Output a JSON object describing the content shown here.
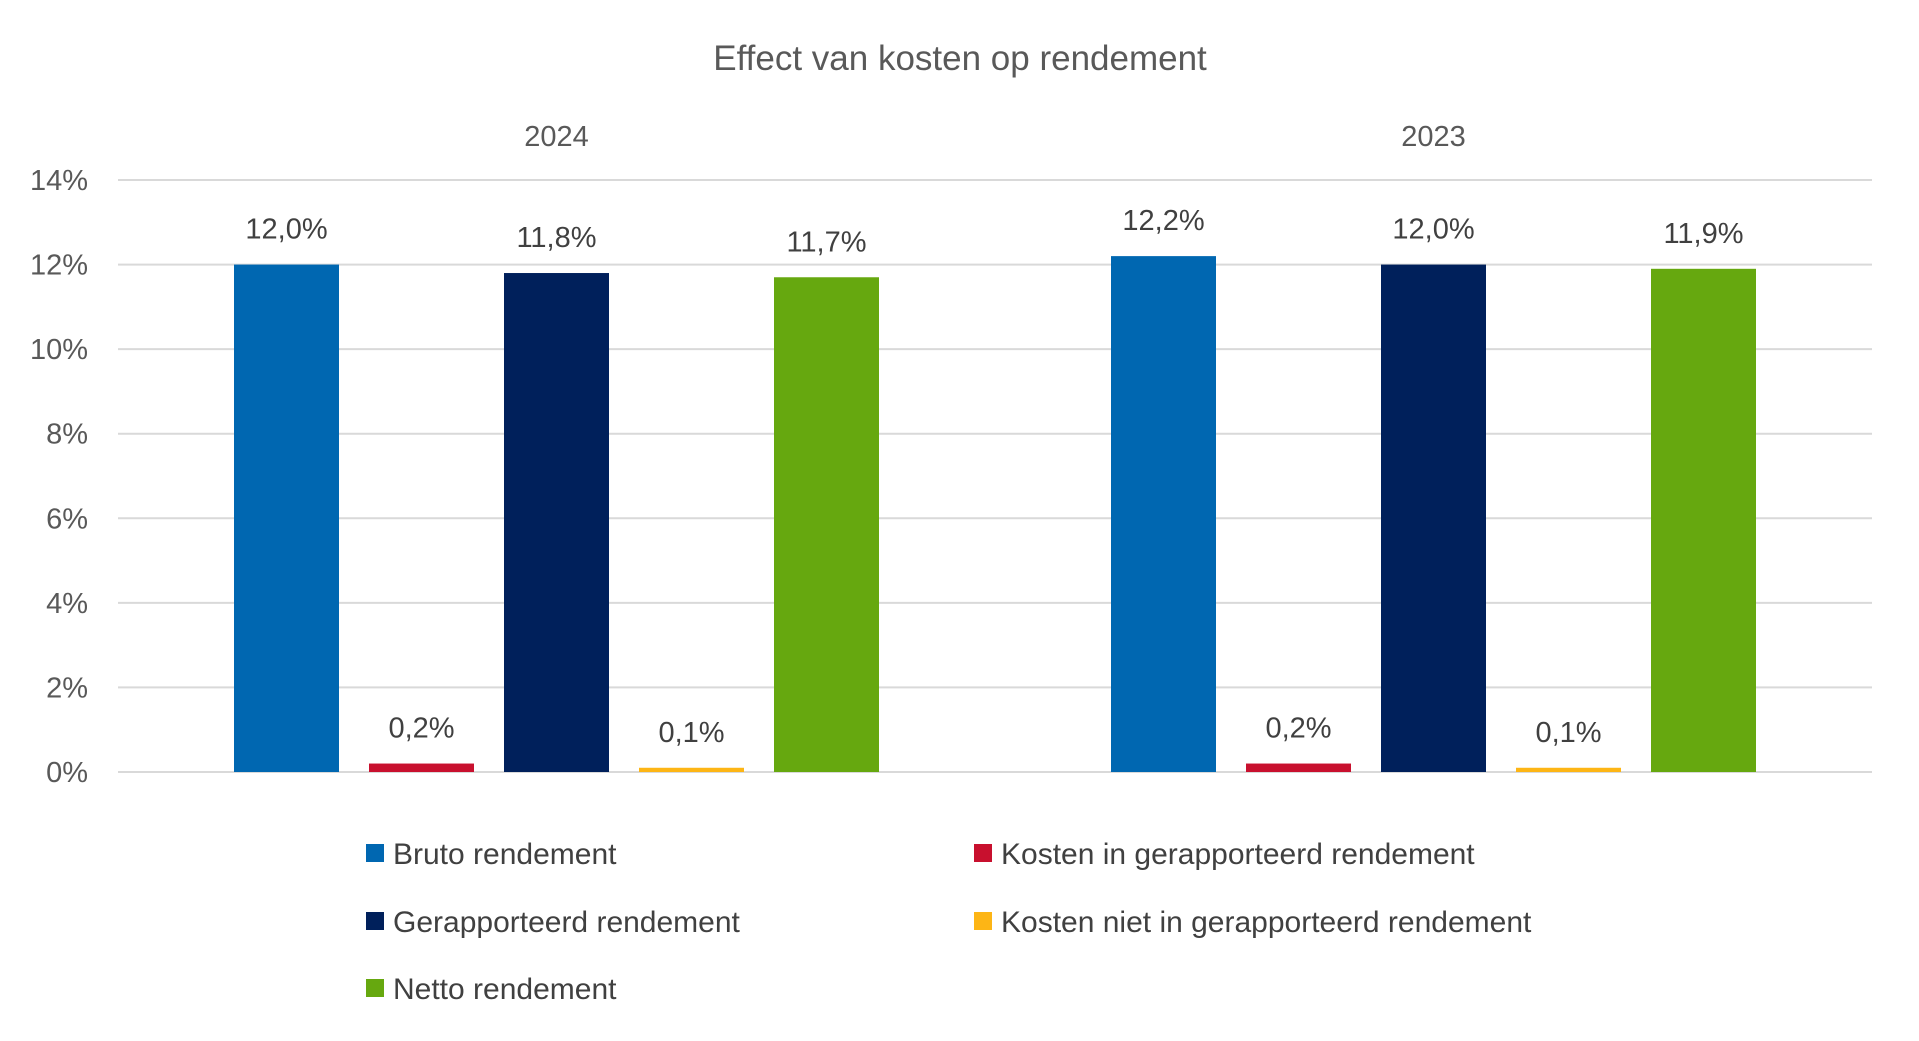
{
  "chart_data": {
    "type": "bar",
    "title": "Effect van kosten op rendement",
    "categories": [
      "2024",
      "2023"
    ],
    "series": [
      {
        "name": "Bruto rendement",
        "color": "#0067B1",
        "values": [
          12.0,
          12.2
        ],
        "labels": [
          "12,0%",
          "12,2%"
        ]
      },
      {
        "name": "Kosten in gerapporteerd rendement",
        "color": "#C8102E",
        "values": [
          0.2,
          0.2
        ],
        "labels": [
          "0,2%",
          "0,2%"
        ]
      },
      {
        "name": "Gerapporteerd rendement",
        "color": "#00205B",
        "values": [
          11.8,
          12.0
        ],
        "labels": [
          "11,8%",
          "12,0%"
        ]
      },
      {
        "name": "Kosten niet in gerapporteerd rendement",
        "color": "#FDB515",
        "values": [
          0.1,
          0.1
        ],
        "labels": [
          "0,1%",
          "0,1%"
        ]
      },
      {
        "name": "Netto rendement",
        "color": "#66A80F",
        "values": [
          11.7,
          11.9
        ],
        "labels": [
          "11,7%",
          "11,9%"
        ]
      }
    ],
    "ylim": [
      0,
      14
    ],
    "yticks": [
      0,
      2,
      4,
      6,
      8,
      10,
      12,
      14
    ],
    "ytick_labels": [
      "0%",
      "2%",
      "4%",
      "6%",
      "8%",
      "10%",
      "12%",
      "14%"
    ],
    "xlabel": "",
    "ylabel": "",
    "grid": true,
    "legend_position": "bottom"
  }
}
